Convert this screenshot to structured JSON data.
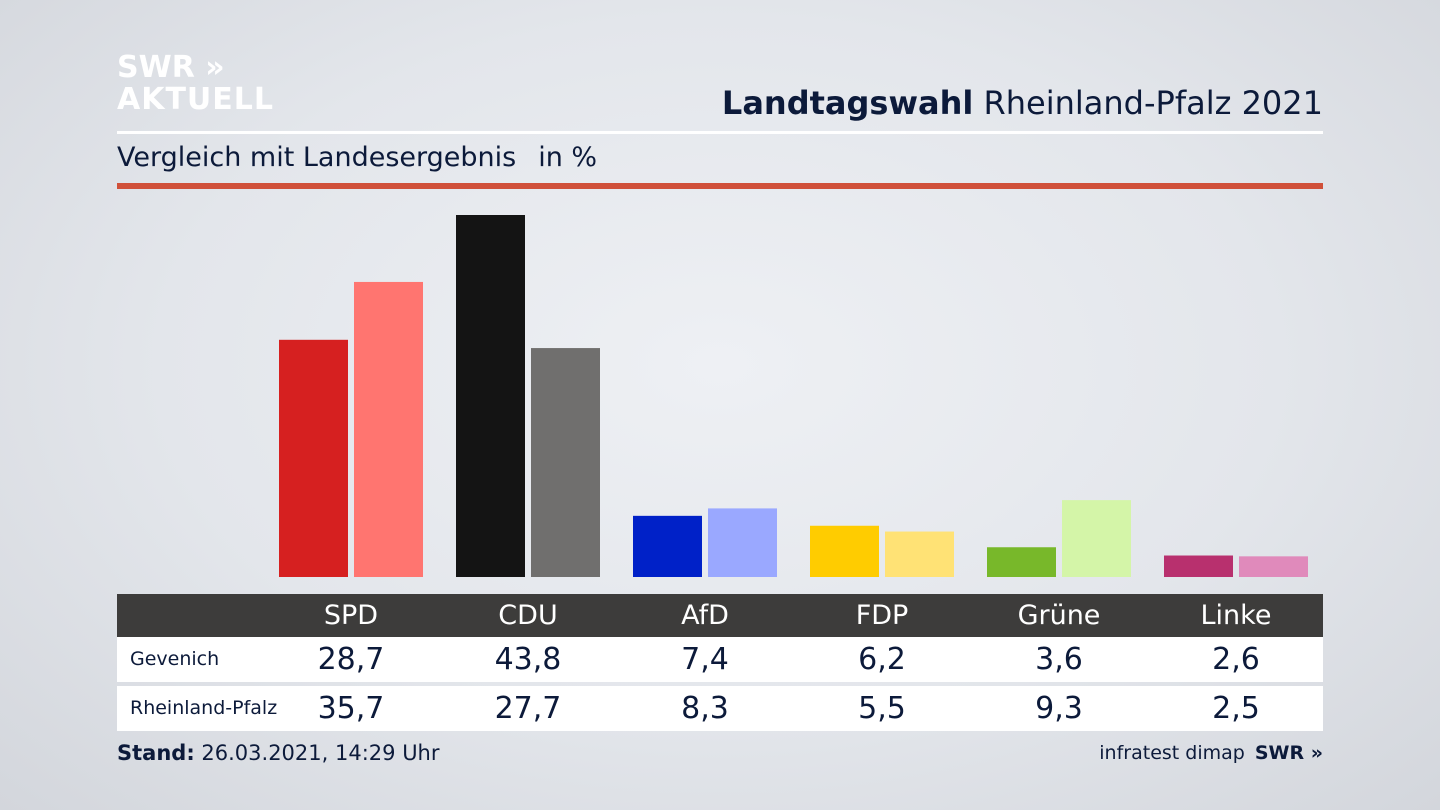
{
  "brand": {
    "line1": "SWR »",
    "line2": "AKTUELL"
  },
  "header": {
    "title_bold": "Landtagswahl",
    "title_rest": "Rheinland-Pfalz 2021"
  },
  "subheader": {
    "text": "Vergleich mit Landesergebnis",
    "unit": "in %"
  },
  "colors": {
    "accent_line": "#d0503a",
    "table_header": "#3d3c3b"
  },
  "chart_data": {
    "type": "bar",
    "categories": [
      "SPD",
      "CDU",
      "AfD",
      "FDP",
      "Grüne",
      "Linke"
    ],
    "series": [
      {
        "name": "Gevenich",
        "values": [
          28.7,
          43.8,
          7.4,
          6.2,
          3.6,
          2.6
        ],
        "colors": [
          "#d62020",
          "#141414",
          "#0021c8",
          "#ffcc00",
          "#78b82a",
          "#b8306e"
        ]
      },
      {
        "name": "Rheinland-Pfalz",
        "values": [
          35.7,
          27.7,
          8.3,
          5.5,
          9.3,
          2.5
        ],
        "colors": [
          "#ff7570",
          "#706f6e",
          "#9aa8ff",
          "#ffe275",
          "#d4f5a8",
          "#e08abb"
        ]
      }
    ],
    "ylim": [
      0,
      43.8
    ],
    "value_labels": {
      "Gevenich": [
        "28,7",
        "43,8",
        "7,4",
        "6,2",
        "3,6",
        "2,6"
      ],
      "Rheinland-Pfalz": [
        "35,7",
        "27,7",
        "8,3",
        "5,5",
        "9,3",
        "2,5"
      ]
    }
  },
  "footer": {
    "stand_label": "Stand:",
    "stand_value": "26.03.2021, 14:29 Uhr",
    "source": "infratest dimap",
    "source_brand": "SWR »"
  }
}
